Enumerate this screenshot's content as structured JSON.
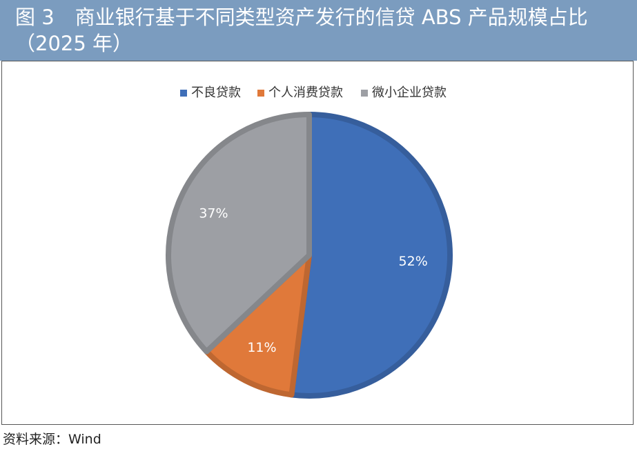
{
  "chart_data": {
    "type": "pie",
    "figure_label": "图 3",
    "title": "商业银行基于不同类型资产发行的信贷 ABS 产品规模占比（2025 年）",
    "categories": [
      "不良贷款",
      "个人消费贷款",
      "微小企业贷款"
    ],
    "values": [
      52,
      11,
      37
    ],
    "value_labels": [
      "52%",
      "11%",
      "37%"
    ],
    "colors": [
      "#3f6fb8",
      "#e0793a",
      "#9d9fa4"
    ],
    "legend": "top",
    "source": "资料来源：Wind"
  }
}
